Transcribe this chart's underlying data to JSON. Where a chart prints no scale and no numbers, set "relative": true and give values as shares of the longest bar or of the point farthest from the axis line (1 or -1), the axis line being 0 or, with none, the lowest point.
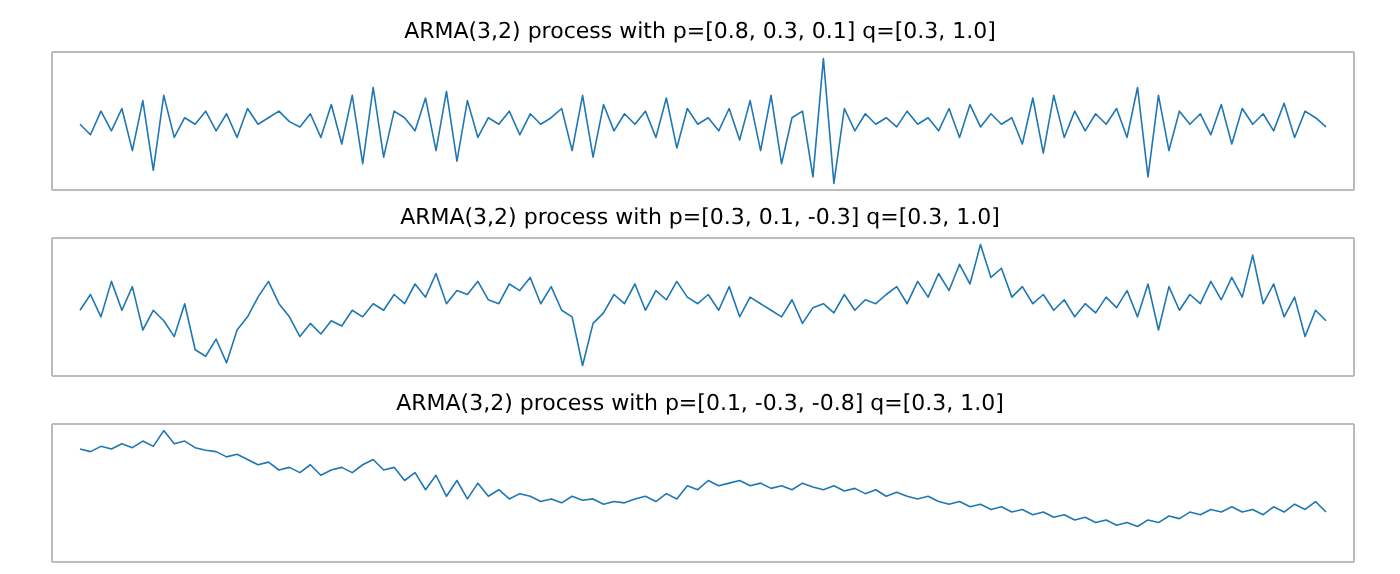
{
  "chart_data": [
    {
      "type": "line",
      "title": "ARMA(3,2) process with p=[0.8, 0.3, 0.1] q=[0.3, 1.0]",
      "relative": true,
      "categories": [
        null,
        null,
        null,
        null,
        null,
        null,
        null,
        null,
        null,
        null,
        null,
        null,
        null,
        null,
        null,
        null,
        null,
        null,
        null,
        null,
        null,
        null,
        null,
        null,
        null,
        null,
        null,
        null,
        null,
        null,
        null,
        null,
        null,
        null,
        null,
        null,
        null,
        null,
        null,
        null,
        null,
        null,
        null,
        null,
        null,
        null,
        null,
        null,
        null,
        null,
        null,
        null,
        null,
        null,
        null,
        null,
        null,
        null,
        null,
        null,
        null,
        null,
        null,
        null,
        null,
        null,
        null,
        null,
        null,
        null,
        null,
        null,
        null,
        null,
        null,
        null,
        null,
        null,
        null,
        null,
        null,
        null,
        null,
        null,
        null,
        null,
        null,
        null,
        null,
        null,
        null,
        null,
        null,
        null,
        null,
        null,
        null,
        null,
        null,
        null,
        null,
        null,
        null,
        null,
        null,
        null,
        null,
        null,
        null,
        null,
        null,
        null,
        null,
        null,
        null,
        null,
        null,
        null,
        null,
        null
      ],
      "series": [
        {
          "color": "#1f77b4",
          "values": [
            0.5,
            0.42,
            0.6,
            0.45,
            0.62,
            0.3,
            0.68,
            0.15,
            0.72,
            0.4,
            0.55,
            0.5,
            0.6,
            0.45,
            0.58,
            0.4,
            0.62,
            0.5,
            0.55,
            0.6,
            0.52,
            0.48,
            0.58,
            0.4,
            0.65,
            0.35,
            0.72,
            0.2,
            0.78,
            0.25,
            0.6,
            0.55,
            0.45,
            0.7,
            0.3,
            0.75,
            0.22,
            0.68,
            0.4,
            0.55,
            0.5,
            0.6,
            0.42,
            0.58,
            0.5,
            0.55,
            0.62,
            0.3,
            0.72,
            0.25,
            0.65,
            0.45,
            0.58,
            0.5,
            0.6,
            0.4,
            0.7,
            0.32,
            0.62,
            0.5,
            0.55,
            0.45,
            0.62,
            0.38,
            0.68,
            0.3,
            0.72,
            0.2,
            0.55,
            0.6,
            0.1,
            1.0,
            0.05,
            0.62,
            0.45,
            0.58,
            0.5,
            0.55,
            0.48,
            0.6,
            0.5,
            0.55,
            0.45,
            0.62,
            0.4,
            0.65,
            0.48,
            0.58,
            0.5,
            0.55,
            0.35,
            0.7,
            0.28,
            0.72,
            0.4,
            0.6,
            0.45,
            0.58,
            0.5,
            0.62,
            0.4,
            0.78,
            0.1,
            0.72,
            0.3,
            0.6,
            0.5,
            0.58,
            0.42,
            0.65,
            0.35,
            0.62,
            0.5,
            0.58,
            0.45,
            0.66,
            0.4,
            0.6,
            0.55,
            0.48
          ]
        }
      ]
    },
    {
      "type": "line",
      "title": "ARMA(3,2) process with p=[0.3, 0.1, -0.3] q=[0.3, 1.0]",
      "relative": true,
      "categories": [
        null,
        null,
        null,
        null,
        null,
        null,
        null,
        null,
        null,
        null,
        null,
        null,
        null,
        null,
        null,
        null,
        null,
        null,
        null,
        null,
        null,
        null,
        null,
        null,
        null,
        null,
        null,
        null,
        null,
        null,
        null,
        null,
        null,
        null,
        null,
        null,
        null,
        null,
        null,
        null,
        null,
        null,
        null,
        null,
        null,
        null,
        null,
        null,
        null,
        null,
        null,
        null,
        null,
        null,
        null,
        null,
        null,
        null,
        null,
        null,
        null,
        null,
        null,
        null,
        null,
        null,
        null,
        null,
        null,
        null,
        null,
        null,
        null,
        null,
        null,
        null,
        null,
        null,
        null,
        null,
        null,
        null,
        null,
        null,
        null,
        null,
        null,
        null,
        null,
        null,
        null,
        null,
        null,
        null,
        null,
        null,
        null,
        null,
        null,
        null,
        null,
        null,
        null,
        null,
        null,
        null,
        null,
        null,
        null,
        null,
        null,
        null,
        null,
        null,
        null,
        null,
        null,
        null,
        null,
        null
      ],
      "series": [
        {
          "color": "#1f77b4",
          "values": [
            0.5,
            0.62,
            0.45,
            0.72,
            0.5,
            0.68,
            0.35,
            0.5,
            0.42,
            0.3,
            0.55,
            0.2,
            0.15,
            0.28,
            0.1,
            0.35,
            0.45,
            0.6,
            0.72,
            0.55,
            0.45,
            0.3,
            0.4,
            0.32,
            0.42,
            0.38,
            0.5,
            0.45,
            0.55,
            0.5,
            0.62,
            0.55,
            0.7,
            0.6,
            0.78,
            0.55,
            0.65,
            0.62,
            0.72,
            0.58,
            0.55,
            0.7,
            0.65,
            0.75,
            0.55,
            0.68,
            0.5,
            0.45,
            0.08,
            0.4,
            0.48,
            0.62,
            0.55,
            0.7,
            0.5,
            0.65,
            0.58,
            0.72,
            0.6,
            0.55,
            0.62,
            0.5,
            0.68,
            0.45,
            0.6,
            0.55,
            0.5,
            0.45,
            0.58,
            0.4,
            0.52,
            0.55,
            0.48,
            0.62,
            0.5,
            0.58,
            0.55,
            0.62,
            0.68,
            0.55,
            0.72,
            0.6,
            0.78,
            0.65,
            0.85,
            0.7,
            1.0,
            0.75,
            0.82,
            0.6,
            0.68,
            0.55,
            0.62,
            0.5,
            0.58,
            0.45,
            0.55,
            0.48,
            0.6,
            0.52,
            0.65,
            0.45,
            0.7,
            0.35,
            0.68,
            0.5,
            0.62,
            0.55,
            0.72,
            0.58,
            0.75,
            0.6,
            0.92,
            0.55,
            0.7,
            0.45,
            0.6,
            0.3,
            0.5,
            0.42
          ]
        }
      ]
    },
    {
      "type": "line",
      "title": "ARMA(3,2) process with p=[0.1, -0.3, -0.8] q=[0.3, 1.0]",
      "relative": true,
      "categories": [
        null,
        null,
        null,
        null,
        null,
        null,
        null,
        null,
        null,
        null,
        null,
        null,
        null,
        null,
        null,
        null,
        null,
        null,
        null,
        null,
        null,
        null,
        null,
        null,
        null,
        null,
        null,
        null,
        null,
        null,
        null,
        null,
        null,
        null,
        null,
        null,
        null,
        null,
        null,
        null,
        null,
        null,
        null,
        null,
        null,
        null,
        null,
        null,
        null,
        null,
        null,
        null,
        null,
        null,
        null,
        null,
        null,
        null,
        null,
        null,
        null,
        null,
        null,
        null,
        null,
        null,
        null,
        null,
        null,
        null,
        null,
        null,
        null,
        null,
        null,
        null,
        null,
        null,
        null,
        null,
        null,
        null,
        null,
        null,
        null,
        null,
        null,
        null,
        null,
        null,
        null,
        null,
        null,
        null,
        null,
        null,
        null,
        null,
        null,
        null,
        null,
        null,
        null,
        null,
        null,
        null,
        null,
        null,
        null,
        null,
        null,
        null,
        null,
        null,
        null,
        null,
        null,
        null,
        null,
        null
      ],
      "series": [
        {
          "color": "#1f77b4",
          "values": [
            0.86,
            0.84,
            0.88,
            0.86,
            0.9,
            0.87,
            0.92,
            0.88,
            1.0,
            0.9,
            0.92,
            0.87,
            0.85,
            0.84,
            0.8,
            0.82,
            0.78,
            0.74,
            0.76,
            0.7,
            0.72,
            0.68,
            0.74,
            0.66,
            0.7,
            0.72,
            0.68,
            0.74,
            0.78,
            0.7,
            0.72,
            0.62,
            0.68,
            0.55,
            0.66,
            0.5,
            0.62,
            0.48,
            0.6,
            0.5,
            0.55,
            0.48,
            0.52,
            0.5,
            0.46,
            0.48,
            0.45,
            0.5,
            0.47,
            0.48,
            0.44,
            0.46,
            0.45,
            0.48,
            0.5,
            0.46,
            0.52,
            0.48,
            0.58,
            0.55,
            0.62,
            0.58,
            0.6,
            0.62,
            0.58,
            0.6,
            0.56,
            0.58,
            0.55,
            0.6,
            0.57,
            0.55,
            0.58,
            0.54,
            0.56,
            0.52,
            0.55,
            0.5,
            0.53,
            0.5,
            0.48,
            0.5,
            0.46,
            0.44,
            0.46,
            0.42,
            0.44,
            0.4,
            0.42,
            0.38,
            0.4,
            0.36,
            0.38,
            0.34,
            0.36,
            0.32,
            0.34,
            0.3,
            0.32,
            0.28,
            0.3,
            0.27,
            0.32,
            0.3,
            0.35,
            0.33,
            0.38,
            0.36,
            0.4,
            0.38,
            0.42,
            0.38,
            0.4,
            0.36,
            0.42,
            0.38,
            0.44,
            0.4,
            0.46,
            0.38
          ]
        }
      ]
    }
  ]
}
